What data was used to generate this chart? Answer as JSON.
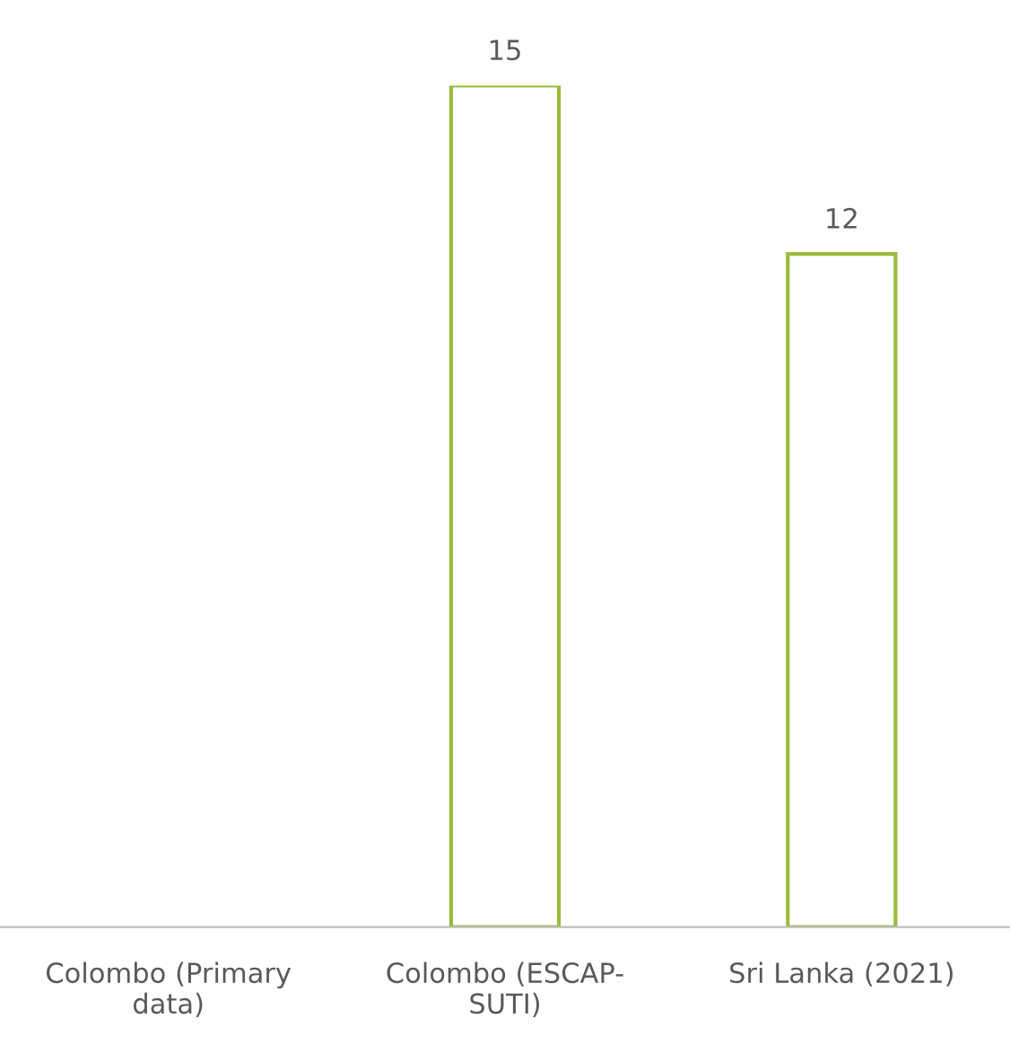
{
  "chart_data": {
    "type": "bar",
    "categories": [
      "Colombo (Primary data)",
      "Colombo (ESCAP-SUTI)",
      "Sri Lanka (2021)"
    ],
    "values": [
      null,
      15,
      12
    ],
    "color": "#9bbb3a",
    "data_labels": true,
    "grid": false
  }
}
